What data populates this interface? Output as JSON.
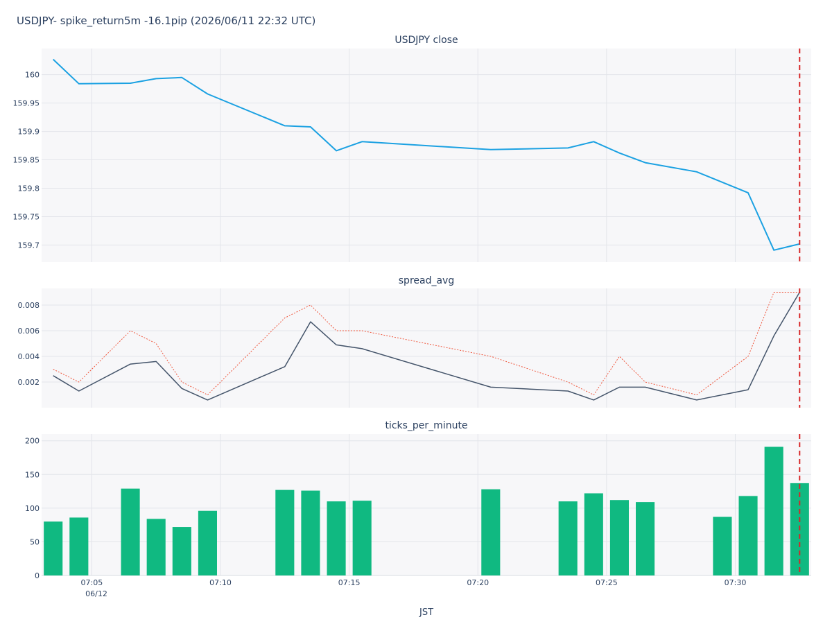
{
  "title": "USDJPY- spike_return5m -16.1pip (2026/06/11 22:32 UTC)",
  "xaxis_label": "JST",
  "date_label": "06/12",
  "colors": {
    "close": "#1ba1e2",
    "spread": "#44546a",
    "spread_max": "#ef553b",
    "ticks": "#10b981",
    "event_line": "#d62728"
  },
  "chart_data": [
    {
      "type": "line",
      "title": "USDJPY close",
      "x_minutes": [
        3.5,
        4.5,
        6.5,
        7.5,
        8.5,
        9.5,
        12.5,
        13.5,
        14.5,
        15.5,
        20.5,
        23.5,
        24.5,
        25.5,
        26.5,
        28.5,
        30.5,
        31.5,
        32.5
      ],
      "series": [
        {
          "values": [
            160.027,
            159.984,
            159.985,
            159.993,
            159.995,
            159.966,
            159.91,
            159.908,
            159.866,
            159.882,
            159.868,
            159.871,
            159.882,
            159.862,
            159.845,
            159.829,
            159.792,
            159.691,
            159.702
          ]
        }
      ],
      "ylim": [
        159.67,
        160.046
      ],
      "yticks": [
        "160",
        "159.95",
        "159.9",
        "159.85",
        "159.8",
        "159.75",
        "159.7"
      ],
      "ytick_values": [
        160,
        159.95,
        159.9,
        159.85,
        159.8,
        159.75,
        159.7
      ]
    },
    {
      "type": "line",
      "title": "spread_avg",
      "x_minutes": [
        3.5,
        4.5,
        6.5,
        7.5,
        8.5,
        9.5,
        12.5,
        13.5,
        14.5,
        15.5,
        20.5,
        23.5,
        24.5,
        25.5,
        26.5,
        28.5,
        30.5,
        31.5,
        32.5
      ],
      "series": [
        {
          "style": "solid",
          "values": [
            0.0025,
            0.0013,
            0.0034,
            0.0036,
            0.0015,
            0.0006,
            0.0032,
            0.0067,
            0.0049,
            0.0046,
            0.0016,
            0.0013,
            0.0006,
            0.0016,
            0.0016,
            0.0006,
            0.0014,
            0.0056,
            0.009
          ]
        },
        {
          "style": "dotted",
          "values": [
            0.003,
            0.002,
            0.006,
            0.005,
            0.002,
            0.001,
            0.007,
            0.008,
            0.006,
            0.006,
            0.004,
            0.002,
            0.001,
            0.004,
            0.002,
            0.001,
            0.004,
            0.009,
            0.009
          ]
        }
      ],
      "ylim": [
        0,
        0.0093
      ],
      "yticks": [
        "0.008",
        "0.006",
        "0.004",
        "0.002"
      ],
      "ytick_values": [
        0.008,
        0.006,
        0.004,
        0.002
      ]
    },
    {
      "type": "bar",
      "title": "ticks_per_minute",
      "x_minutes": [
        3.5,
        4.5,
        6.5,
        7.5,
        8.5,
        9.5,
        12.5,
        13.5,
        14.5,
        15.5,
        20.5,
        23.5,
        24.5,
        25.5,
        26.5,
        29.5,
        30.5,
        31.5,
        32.5
      ],
      "values": [
        80,
        86,
        129,
        84,
        72,
        96,
        127,
        126,
        110,
        111,
        128,
        110,
        122,
        112,
        109,
        87,
        118,
        191,
        137
      ],
      "ylim": [
        0,
        210
      ],
      "yticks": [
        "200",
        "150",
        "100",
        "50",
        "0"
      ],
      "ytick_values": [
        200,
        150,
        100,
        50,
        0
      ]
    }
  ],
  "xaxis": {
    "tick_minutes": [
      5,
      10,
      15,
      20,
      25,
      30
    ],
    "tick_labels": [
      "07:05",
      "07:10",
      "07:15",
      "07:20",
      "07:25",
      "07:30"
    ],
    "range_minutes": [
      3.05,
      32.95
    ],
    "event_minute": 32.5
  }
}
